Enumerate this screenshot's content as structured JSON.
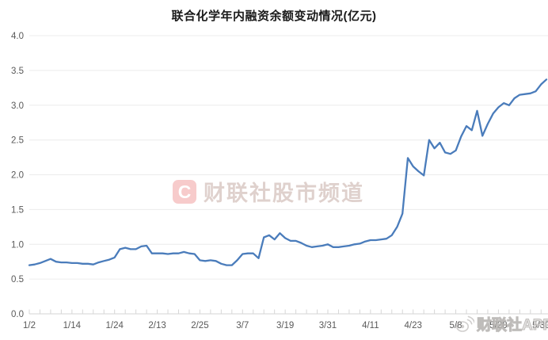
{
  "title": {
    "text": "联合化学年内融资余额变动情况(亿元)"
  },
  "watermark_center": {
    "logo_letter": "C",
    "text": "财联社股市频道"
  },
  "watermark_bottom_right": {
    "icon": "weibo-icon",
    "text": "财联社APP"
  },
  "chart_data": {
    "type": "line",
    "title": "联合化学年内融资余额变动情况(亿元)",
    "unit": "亿元",
    "series_name": "融资余额",
    "grid": "horizontal",
    "legend": "none",
    "ylim": [
      0.0,
      4.0
    ],
    "y_tick_labels": [
      "0.0",
      "0.5",
      "1.0",
      "1.5",
      "2.0",
      "2.5",
      "3.0",
      "3.5",
      "4.0"
    ],
    "x_tick_labels": [
      "1/2",
      "1/14",
      "1/24",
      "2/13",
      "2/25",
      "3/7",
      "3/19",
      "3/31",
      "4/11",
      "4/23",
      "5/8",
      "5/20",
      "5/30"
    ],
    "x_tick_indices": [
      0,
      8,
      16,
      24,
      32,
      40,
      48,
      56,
      64,
      72,
      80,
      88,
      96
    ],
    "x_note": "one point per trading day, 1/2 through early June",
    "line_color": "#4a7cbb",
    "values": [
      0.7,
      0.71,
      0.73,
      0.76,
      0.79,
      0.75,
      0.74,
      0.74,
      0.73,
      0.73,
      0.72,
      0.72,
      0.71,
      0.74,
      0.76,
      0.78,
      0.81,
      0.93,
      0.95,
      0.93,
      0.93,
      0.97,
      0.98,
      0.87,
      0.87,
      0.87,
      0.86,
      0.87,
      0.87,
      0.89,
      0.87,
      0.86,
      0.77,
      0.76,
      0.77,
      0.76,
      0.72,
      0.7,
      0.7,
      0.77,
      0.86,
      0.87,
      0.87,
      0.8,
      1.1,
      1.13,
      1.07,
      1.16,
      1.09,
      1.05,
      1.05,
      1.02,
      0.98,
      0.96,
      0.97,
      0.98,
      1.0,
      0.96,
      0.96,
      0.97,
      0.98,
      1.0,
      1.01,
      1.04,
      1.06,
      1.06,
      1.07,
      1.08,
      1.13,
      1.25,
      1.44,
      2.24,
      2.12,
      2.05,
      1.99,
      2.5,
      2.38,
      2.46,
      2.32,
      2.3,
      2.35,
      2.55,
      2.7,
      2.64,
      2.92,
      2.56,
      2.73,
      2.88,
      2.97,
      3.03,
      3.0,
      3.1,
      3.15,
      3.16,
      3.17,
      3.2,
      3.3,
      3.37
    ]
  }
}
